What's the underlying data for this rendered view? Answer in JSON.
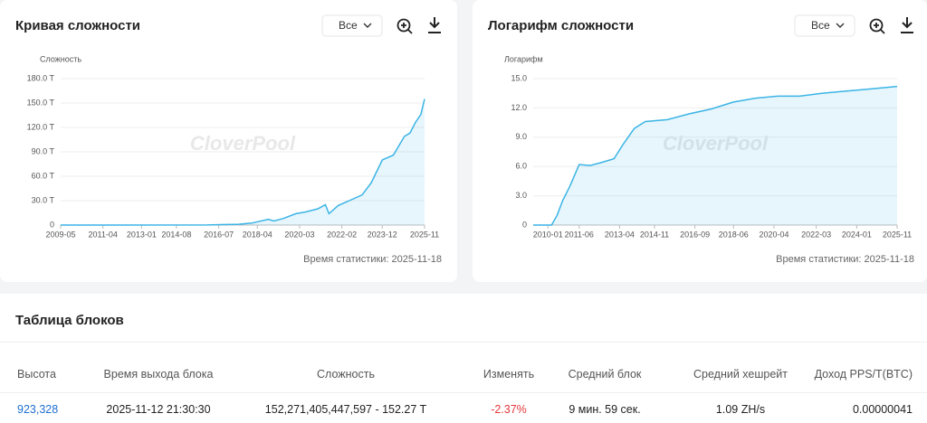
{
  "chart_data": [
    {
      "type": "line",
      "title": "Кривая сложности",
      "range_button": "Все",
      "ylabel": "Сложность",
      "watermark": "CloverPool",
      "footer": "Время статистики: 2025-11-18",
      "xlim": [
        "2009-05",
        "2025-11"
      ],
      "xticks": [
        "2009-05",
        "2011-04",
        "2013-01",
        "2014-08",
        "2016-07",
        "2018-04",
        "2020-03",
        "2022-02",
        "2023-12",
        "2025-11"
      ],
      "ylim": [
        0,
        180
      ],
      "yticks": [
        0,
        {
          "value": 30,
          "label": "30.0 T"
        },
        {
          "value": 60,
          "label": "60.0 T"
        },
        {
          "value": 90,
          "label": "90.0 T"
        },
        {
          "value": 120,
          "label": "120.0 T"
        },
        {
          "value": 150,
          "label": "150.0 T"
        },
        {
          "value": 180,
          "label": "180.0 T"
        }
      ],
      "grid": true,
      "area": true,
      "x": [
        "2009-05",
        "2016-01",
        "2017-06",
        "2018-01",
        "2018-10",
        "2019-01",
        "2019-06",
        "2020-01",
        "2020-06",
        "2021-01",
        "2021-05",
        "2021-07",
        "2021-12",
        "2022-06",
        "2023-01",
        "2023-06",
        "2023-12",
        "2024-06",
        "2024-12",
        "2025-03",
        "2025-06",
        "2025-09",
        "2025-11"
      ],
      "series": [
        {
          "color": "#3bb4e5",
          "values": [
            0,
            0.1,
            1,
            2.5,
            7,
            5,
            8,
            14,
            16,
            20,
            25,
            14,
            24,
            30,
            37,
            52,
            80,
            86,
            109,
            113,
            126,
            136,
            155
          ]
        }
      ]
    },
    {
      "type": "line",
      "title": "Логарифм сложности",
      "range_button": "Все",
      "ylabel": "Логарифм",
      "watermark": "CloverPool",
      "footer": "Время статистики: 2025-11-18",
      "xlim": [
        "2009-05",
        "2025-11"
      ],
      "xticks": [
        "2010-01",
        "2011-06",
        "2013-04",
        "2014-11",
        "2016-09",
        "2018-06",
        "2020-04",
        "2022-03",
        "2024-01",
        "2025-11"
      ],
      "ylim": [
        0,
        15
      ],
      "yticks": [
        0,
        {
          "value": 3,
          "label": "3.0"
        },
        {
          "value": 6,
          "label": "6.0"
        },
        {
          "value": 9,
          "label": "9.0"
        },
        {
          "value": 12,
          "label": "12.0"
        },
        {
          "value": 15,
          "label": "15.0"
        }
      ],
      "grid": true,
      "area": true,
      "x": [
        "2009-05",
        "2010-03",
        "2010-06",
        "2010-09",
        "2011-01",
        "2011-06",
        "2011-12",
        "2012-06",
        "2013-01",
        "2013-06",
        "2013-12",
        "2014-06",
        "2015-06",
        "2016-06",
        "2017-06",
        "2018-06",
        "2019-06",
        "2020-06",
        "2021-06",
        "2022-06",
        "2023-06",
        "2024-06",
        "2025-11"
      ],
      "series": [
        {
          "color": "#3bb4e5",
          "values": [
            0,
            0,
            1,
            2.5,
            4,
            6.2,
            6.1,
            6.4,
            6.8,
            8.3,
            9.9,
            10.6,
            10.8,
            11.4,
            11.9,
            12.6,
            13.0,
            13.2,
            13.2,
            13.5,
            13.7,
            13.9,
            14.2
          ]
        }
      ]
    }
  ],
  "table": {
    "title": "Таблица блоков",
    "headers": [
      "Высота",
      "Время выхода блока",
      "Сложность",
      "Изменять",
      "Средний блок",
      "Средний хешрейт",
      "Доход PPS/T(BTC)"
    ],
    "rows": [
      [
        "923,328",
        "2025-11-12 21:30:30",
        "152,271,405,447,597 - 152.27 T",
        "-2.37%",
        "9 мин. 59 сек.",
        "1.09 ZH/s",
        "0.00000041"
      ]
    ]
  }
}
